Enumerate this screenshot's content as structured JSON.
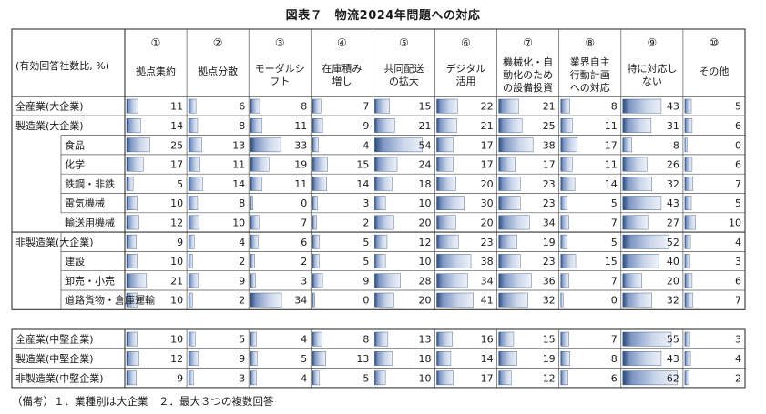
{
  "title": "図表７　物流2024年問題への対応",
  "note": "（備考）１．業種別は大企業　２．最大３つの複数回答",
  "chart_data": {
    "type": "table",
    "row_header_label": "(有効回答社数比, %)",
    "columns": [
      {
        "num": "①",
        "label": [
          "拠点集約"
        ]
      },
      {
        "num": "②",
        "label": [
          "拠点分散"
        ]
      },
      {
        "num": "③",
        "label": [
          "モーダルシ",
          "フト"
        ]
      },
      {
        "num": "④",
        "label": [
          "在庫積み",
          "増し"
        ]
      },
      {
        "num": "⑤",
        "label": [
          "共同配送",
          "の拡大"
        ]
      },
      {
        "num": "⑥",
        "label": [
          "デジタル",
          "活用"
        ]
      },
      {
        "num": "⑦",
        "label": [
          "機械化・自",
          "動化のため",
          "の設備投資"
        ]
      },
      {
        "num": "⑧",
        "label": [
          "業界自主",
          "行動計画",
          "への対応"
        ]
      },
      {
        "num": "⑨",
        "label": [
          "特に対応し",
          "ない"
        ]
      },
      {
        "num": "⑩",
        "label": [
          "その他"
        ]
      }
    ],
    "groups": [
      {
        "rows": [
          {
            "label": "全産業(大企業)",
            "indent": 0,
            "values": [
              11,
              6,
              8,
              7,
              15,
              22,
              21,
              8,
              43,
              5
            ]
          }
        ]
      },
      {
        "rows": [
          {
            "label": "製造業(大企業)",
            "indent": 0,
            "values": [
              14,
              8,
              11,
              9,
              21,
              21,
              25,
              11,
              31,
              6
            ]
          },
          {
            "label": "食品",
            "indent": 1,
            "values": [
              25,
              13,
              33,
              4,
              54,
              17,
              38,
              17,
              8,
              0
            ]
          },
          {
            "label": "化学",
            "indent": 1,
            "values": [
              17,
              11,
              19,
              15,
              24,
              17,
              17,
              11,
              26,
              6
            ]
          },
          {
            "label": "鉄鋼・非鉄",
            "indent": 1,
            "values": [
              5,
              14,
              11,
              14,
              18,
              20,
              23,
              14,
              32,
              7
            ]
          },
          {
            "label": "電気機械",
            "indent": 1,
            "values": [
              10,
              8,
              0,
              3,
              10,
              30,
              23,
              5,
              43,
              5
            ]
          },
          {
            "label": "輸送用機械",
            "indent": 1,
            "values": [
              12,
              10,
              7,
              2,
              20,
              20,
              34,
              7,
              27,
              10
            ]
          }
        ]
      },
      {
        "rows": [
          {
            "label": "非製造業(大企業)",
            "indent": 0,
            "values": [
              9,
              4,
              6,
              5,
              12,
              23,
              19,
              5,
              52,
              4
            ]
          },
          {
            "label": "建設",
            "indent": 1,
            "values": [
              10,
              2,
              2,
              5,
              10,
              38,
              23,
              15,
              40,
              3
            ]
          },
          {
            "label": "卸売・小売",
            "indent": 1,
            "values": [
              21,
              9,
              3,
              9,
              28,
              34,
              36,
              7,
              20,
              6
            ]
          },
          {
            "label": "道路貨物・倉庫運輸",
            "indent": 1,
            "values": [
              10,
              2,
              34,
              0,
              20,
              41,
              32,
              0,
              32,
              7
            ]
          }
        ]
      }
    ],
    "second_table": [
      {
        "label": "全産業(中堅企業)",
        "values": [
          10,
          5,
          4,
          8,
          13,
          16,
          15,
          7,
          55,
          3
        ]
      },
      {
        "label": "製造業(中堅企業)",
        "values": [
          12,
          9,
          5,
          13,
          18,
          14,
          19,
          8,
          43,
          4
        ]
      },
      {
        "label": "非製造業(中堅企業)",
        "values": [
          9,
          3,
          4,
          5,
          10,
          17,
          12,
          6,
          62,
          2
        ]
      }
    ],
    "bar_scale_max": 62,
    "colors": {
      "bar_dark": "#2c4a7a",
      "bar_light": "#e8eef7",
      "header_num": "#1a1a1a"
    }
  }
}
